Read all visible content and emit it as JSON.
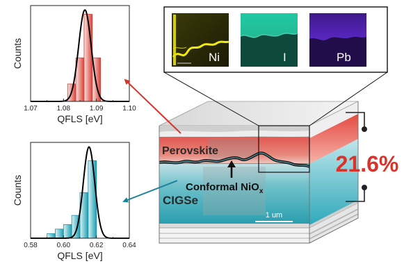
{
  "colors": {
    "perovskite": "#e8524a",
    "perovskite_light": "#f3b5ac",
    "cigse": "#1fa6b8",
    "cigse_light": "#a9dde3",
    "efficiency": "#d9342b",
    "fit_line": "#000000",
    "edx_ni": "#e8e000",
    "edx_i": "#28d6b0",
    "edx_pb": "#6a2bd9"
  },
  "histograms": [
    {
      "id": "top",
      "xlabel": "QFLS [eV]",
      "ylabel": "Counts",
      "xlim": [
        1.07,
        1.1
      ],
      "xticks": [
        "1.07",
        "1.08",
        "1.09",
        "1.10"
      ],
      "bin_width": 0.0025,
      "bins": [
        {
          "x": 1.0825,
          "count": 4
        },
        {
          "x": 1.085,
          "count": 10
        },
        {
          "x": 1.0875,
          "count": 20
        },
        {
          "x": 1.09,
          "count": 10
        }
      ],
      "fit": {
        "mean": 1.0865,
        "sigma": 0.0019,
        "peak": 21
      }
    },
    {
      "id": "bottom",
      "xlabel": "QFLS [eV]",
      "ylabel": "Counts",
      "xlim": [
        0.58,
        0.64
      ],
      "xticks": [
        "0.58",
        "0.60",
        "0.62",
        "0.64"
      ],
      "bin_width": 0.005,
      "bins": [
        {
          "x": 0.5925,
          "count": 1
        },
        {
          "x": 0.5975,
          "count": 2
        },
        {
          "x": 0.6025,
          "count": 3
        },
        {
          "x": 0.6075,
          "count": 5
        },
        {
          "x": 0.6125,
          "count": 10
        },
        {
          "x": 0.6175,
          "count": 17
        }
      ],
      "fit": {
        "mean": 0.6155,
        "sigma": 0.0035,
        "peak": 20
      }
    }
  ],
  "stack": {
    "perovskite_label": "Perovskite",
    "cigse_label": "CIGSe",
    "nio_label_main": "Conformal NiO",
    "nio_label_sub": "x",
    "scalebar_label": "1 um",
    "efficiency": "21.6%"
  },
  "edx_maps": [
    {
      "element": "Ni",
      "color": "#e8e000"
    },
    {
      "element": "I",
      "color": "#28d6b0"
    },
    {
      "element": "Pb",
      "color": "#6a2bd9"
    }
  ]
}
